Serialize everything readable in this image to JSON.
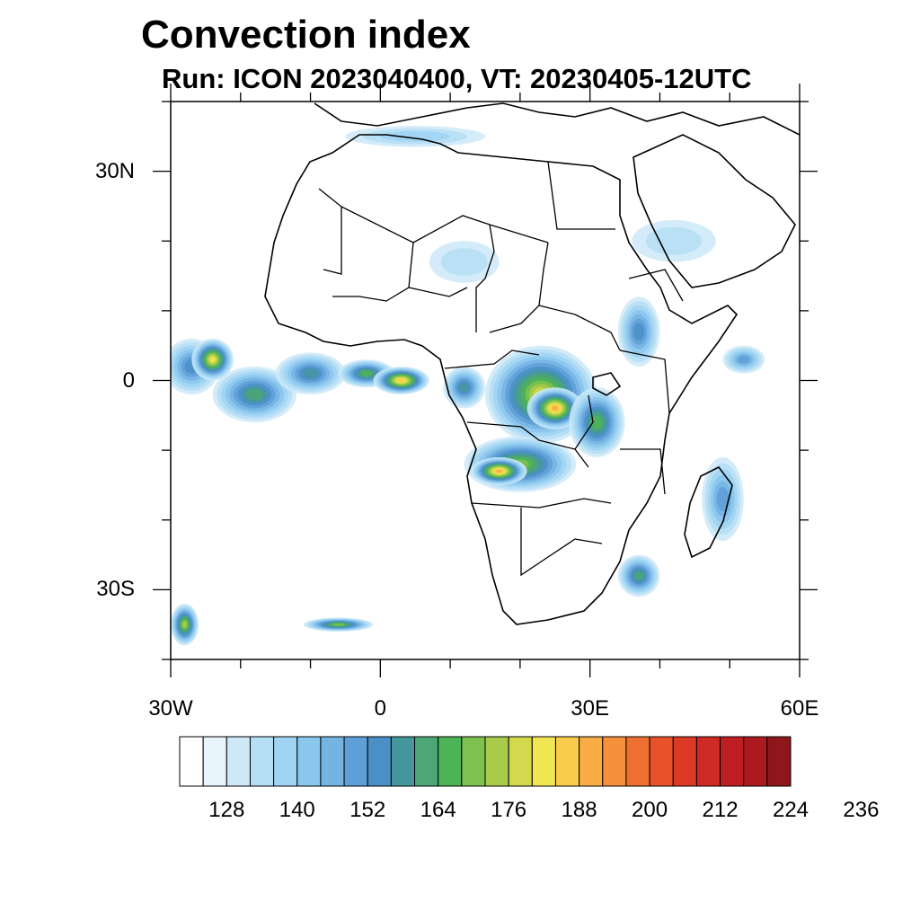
{
  "title": "Convection index",
  "subtitle": "Run: ICON 2023040400,  VT: 20230405-12UTC",
  "axes": {
    "y_labels": [
      {
        "text": "30N",
        "lat": 30
      },
      {
        "text": "0",
        "lat": 0
      },
      {
        "text": "30S",
        "lat": -30
      }
    ],
    "x_labels": [
      {
        "text": "30W",
        "lon": -30
      },
      {
        "text": "0",
        "lon": 0
      },
      {
        "text": "30E",
        "lon": 30
      },
      {
        "text": "60E",
        "lon": 60
      }
    ],
    "lon_range": [
      -30,
      60
    ],
    "lat_range": [
      -40,
      40
    ]
  },
  "colorbar": {
    "colors": [
      "#ffffff",
      "#e8f4fc",
      "#cde9f8",
      "#b5def5",
      "#9fd4f3",
      "#8ac7ec",
      "#75b3e3",
      "#5e9fd7",
      "#4a8fc6",
      "#45979e",
      "#4ca676",
      "#4cb456",
      "#7fc14f",
      "#a8cc4a",
      "#d2d94c",
      "#f0e552",
      "#fbcb4e",
      "#f9ad44",
      "#f4903a",
      "#ee7030",
      "#e75229",
      "#dd3a25",
      "#cf2a25",
      "#bf1e22",
      "#aa1a1f",
      "#8e171b"
    ],
    "labels": [
      "128",
      "140",
      "152",
      "164",
      "176",
      "188",
      "200",
      "212",
      "224",
      "236"
    ]
  },
  "field_blobs": [
    {
      "lon": -27,
      "lat": 2,
      "rx": 4,
      "ry": 4,
      "level": 7
    },
    {
      "lon": -24,
      "lat": 3,
      "rx": 3,
      "ry": 3,
      "level": 14
    },
    {
      "lon": -18,
      "lat": -2,
      "rx": 6,
      "ry": 4,
      "level": 9
    },
    {
      "lon": -10,
      "lat": 1,
      "rx": 5,
      "ry": 3,
      "level": 8
    },
    {
      "lon": -2,
      "lat": 1,
      "rx": 4,
      "ry": 2,
      "level": 10
    },
    {
      "lon": 3,
      "lat": 0,
      "rx": 4,
      "ry": 2,
      "level": 15
    },
    {
      "lon": 12,
      "lat": -1,
      "rx": 3,
      "ry": 3,
      "level": 8
    },
    {
      "lon": 23,
      "lat": -2,
      "rx": 8,
      "ry": 7,
      "level": 13
    },
    {
      "lon": 25,
      "lat": -4,
      "rx": 4,
      "ry": 3,
      "level": 16
    },
    {
      "lon": 20,
      "lat": -12,
      "rx": 8,
      "ry": 4,
      "level": 11
    },
    {
      "lon": 17,
      "lat": -13,
      "rx": 4,
      "ry": 2,
      "level": 16
    },
    {
      "lon": 31,
      "lat": -6,
      "rx": 4,
      "ry": 5,
      "level": 10
    },
    {
      "lon": 37,
      "lat": 7,
      "rx": 3,
      "ry": 5,
      "level": 7
    },
    {
      "lon": 49,
      "lat": -17,
      "rx": 3,
      "ry": 6,
      "level": 6
    },
    {
      "lon": 37,
      "lat": -28,
      "rx": 3,
      "ry": 3,
      "level": 9
    },
    {
      "lon": -28,
      "lat": -35,
      "rx": 2,
      "ry": 3,
      "level": 12
    },
    {
      "lon": 5,
      "lat": 35,
      "rx": 10,
      "ry": 1.5,
      "level": 3
    },
    {
      "lon": 52,
      "lat": 3,
      "rx": 3,
      "ry": 2,
      "level": 6
    },
    {
      "lon": 12,
      "lat": 17,
      "rx": 5,
      "ry": 3,
      "level": 2
    },
    {
      "lon": 42,
      "lat": 20,
      "rx": 6,
      "ry": 3,
      "level": 2
    },
    {
      "lon": -6,
      "lat": -35,
      "rx": 5,
      "ry": 1,
      "level": 11
    }
  ]
}
